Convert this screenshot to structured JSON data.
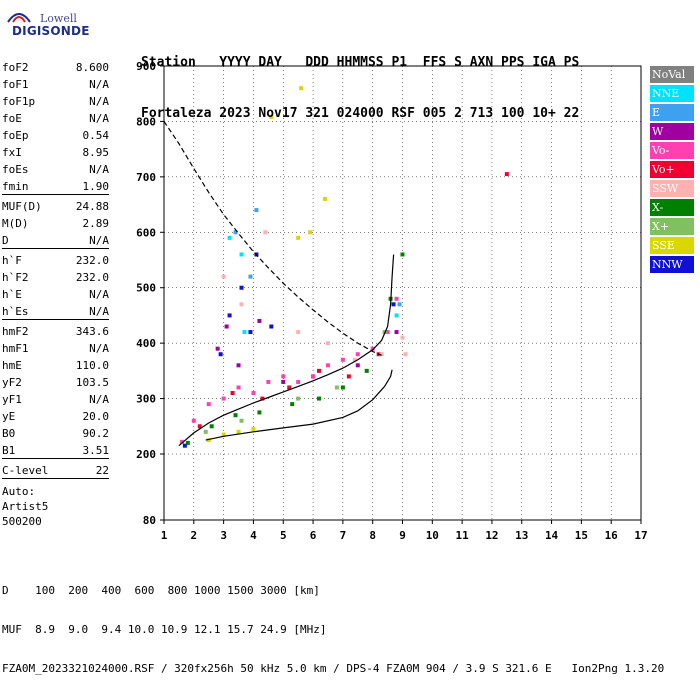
{
  "logo": {
    "line1": "Lowell",
    "line2": "DIGISONDE"
  },
  "header": {
    "row1": "Station   YYYY DAY   DDD HHMMSS P1  FFS S AXN PPS IGA PS",
    "row2": "Fortaleza 2023 Nov17 321 024000 RSF 005 2 713 100 10+ 22"
  },
  "params": [
    {
      "label": "foF2",
      "value": "8.600"
    },
    {
      "label": "foF1",
      "value": "N/A"
    },
    {
      "label": "foF1p",
      "value": "N/A"
    },
    {
      "label": "foE",
      "value": "N/A"
    },
    {
      "label": "foEp",
      "value": "0.54"
    },
    {
      "label": "fxI",
      "value": "8.95"
    },
    {
      "label": "foEs",
      "value": "N/A"
    },
    {
      "label": "fmin",
      "value": "1.90",
      "sep": true
    },
    {
      "label": "MUF(D)",
      "value": "24.88"
    },
    {
      "label": "M(D)",
      "value": "2.89"
    },
    {
      "label": "D",
      "value": "N/A",
      "sep": true
    },
    {
      "label": "h`F",
      "value": "232.0"
    },
    {
      "label": "h`F2",
      "value": "232.0"
    },
    {
      "label": "h`E",
      "value": "N/A"
    },
    {
      "label": "h`Es",
      "value": "N/A",
      "sep": true
    },
    {
      "label": "hmF2",
      "value": "343.6"
    },
    {
      "label": "hmF1",
      "value": "N/A"
    },
    {
      "label": "hmE",
      "value": "110.0"
    },
    {
      "label": "yF2",
      "value": "103.5"
    },
    {
      "label": "yF1",
      "value": "N/A"
    },
    {
      "label": "yE",
      "value": "20.0"
    },
    {
      "label": "B0",
      "value": "90.2"
    },
    {
      "label": "B1",
      "value": "3.51",
      "sep": true
    },
    {
      "label": "C-level",
      "value": "22",
      "sep": true
    }
  ],
  "auto": {
    "line1": "Auto:",
    "line2": "Artist5",
    "line3": "500200"
  },
  "legend": [
    {
      "label": "NoVal",
      "color": "#808080"
    },
    {
      "label": "NNE",
      "color": "#00e0ff"
    },
    {
      "label": "E",
      "color": "#3fa0f0"
    },
    {
      "label": "W",
      "color": "#a000a0"
    },
    {
      "label": "Vo-",
      "color": "#ff40b0"
    },
    {
      "label": "Vo+",
      "color": "#ee0030"
    },
    {
      "label": "SSW",
      "color": "#ffb0b0"
    },
    {
      "label": "X-",
      "color": "#008000"
    },
    {
      "label": "X+",
      "color": "#80c060"
    },
    {
      "label": "SSE",
      "color": "#d8d800"
    },
    {
      "label": "NNW",
      "color": "#1010d0"
    }
  ],
  "footer": {
    "row1": "D    100  200  400  600  800 1000 1500 3000 [km]",
    "row2": "MUF  8.9  9.0  9.4 10.0 10.9 12.1 15.7 24.9 [MHz]",
    "row3": "FZA0M_2023321024000.RSF / 320fx256h 50 kHz 5.0 km / DPS-4 FZA0M 904 / 3.9 S 321.6 E   Ion2Png 1.3.20"
  },
  "chart_data": {
    "type": "scatter",
    "xlim": [
      1,
      17
    ],
    "ylim": [
      80,
      900
    ],
    "x_ticks": [
      1,
      2,
      3,
      4,
      5,
      6,
      7,
      8,
      9,
      10,
      11,
      12,
      13,
      14,
      15,
      16,
      17
    ],
    "y_ticks": [
      80,
      200,
      300,
      400,
      500,
      600,
      700,
      800,
      900
    ],
    "lines": [
      {
        "name": "",
        "style": "solid",
        "color": "#000000",
        "points": [
          [
            1.5,
            215
          ],
          [
            2.0,
            238
          ],
          [
            2.5,
            256
          ],
          [
            3,
            270
          ],
          [
            3.5,
            281
          ],
          [
            4,
            292
          ],
          [
            4.5,
            302
          ],
          [
            5,
            312
          ],
          [
            5.5,
            322
          ],
          [
            6,
            332
          ],
          [
            6.5,
            343
          ],
          [
            7,
            355
          ],
          [
            7.5,
            370
          ],
          [
            8,
            388
          ],
          [
            8.3,
            405
          ],
          [
            8.5,
            430
          ],
          [
            8.6,
            470
          ],
          [
            8.65,
            520
          ],
          [
            8.7,
            560
          ]
        ]
      },
      {
        "name": "",
        "style": "solid",
        "color": "#000000",
        "points": [
          [
            2.4,
            225
          ],
          [
            3,
            232
          ],
          [
            4,
            240
          ],
          [
            5,
            247
          ],
          [
            6,
            254
          ],
          [
            7,
            266
          ],
          [
            7.5,
            278
          ],
          [
            8,
            298
          ],
          [
            8.4,
            322
          ],
          [
            8.6,
            340
          ],
          [
            8.65,
            352
          ]
        ]
      },
      {
        "name": "",
        "style": "dashed",
        "color": "#000000",
        "points": [
          [
            1,
            800
          ],
          [
            1.5,
            760
          ],
          [
            2,
            715
          ],
          [
            2.5,
            672
          ],
          [
            3,
            632
          ],
          [
            3.5,
            598
          ],
          [
            4,
            565
          ],
          [
            4.5,
            536
          ],
          [
            5,
            508
          ],
          [
            5.5,
            483
          ],
          [
            6,
            460
          ],
          [
            6.5,
            438
          ],
          [
            7,
            418
          ],
          [
            7.5,
            400
          ],
          [
            8,
            385
          ],
          [
            8.3,
            378
          ]
        ]
      }
    ],
    "scatter_series": [
      {
        "name": "NNE",
        "color": "#00e0ff",
        "points": [
          [
            3.2,
            590
          ],
          [
            3.6,
            560
          ],
          [
            3.7,
            420
          ],
          [
            8.8,
            450
          ]
        ]
      },
      {
        "name": "E",
        "color": "#3fa0f0",
        "points": [
          [
            3.4,
            600
          ],
          [
            3.9,
            520
          ],
          [
            4.1,
            640
          ],
          [
            8.9,
            470
          ]
        ]
      },
      {
        "name": "W",
        "color": "#a000a0",
        "points": [
          [
            2.8,
            390
          ],
          [
            3.1,
            430
          ],
          [
            3.5,
            360
          ],
          [
            4.2,
            440
          ],
          [
            5,
            330
          ],
          [
            6,
            340
          ],
          [
            7.5,
            360
          ],
          [
            8.8,
            420
          ]
        ]
      },
      {
        "name": "Vo-",
        "color": "#ff40b0",
        "points": [
          [
            1.6,
            222
          ],
          [
            2,
            260
          ],
          [
            2.5,
            290
          ],
          [
            3,
            300
          ],
          [
            3.5,
            320
          ],
          [
            4,
            310
          ],
          [
            4.5,
            330
          ],
          [
            5,
            340
          ],
          [
            5.5,
            330
          ],
          [
            6,
            340
          ],
          [
            6.5,
            360
          ],
          [
            7,
            370
          ],
          [
            7.5,
            380
          ],
          [
            8,
            390
          ],
          [
            8.5,
            420
          ],
          [
            8.8,
            480
          ]
        ]
      },
      {
        "name": "Vo+",
        "color": "#ee0030",
        "points": [
          [
            2.2,
            250
          ],
          [
            3.3,
            310
          ],
          [
            4.3,
            300
          ],
          [
            5.2,
            320
          ],
          [
            6.2,
            350
          ],
          [
            7.2,
            340
          ],
          [
            8.2,
            380
          ],
          [
            12.5,
            705
          ]
        ]
      },
      {
        "name": "SSW",
        "color": "#ffb0b0",
        "points": [
          [
            3.0,
            520
          ],
          [
            3.6,
            470
          ],
          [
            4.4,
            600
          ],
          [
            5.5,
            420
          ],
          [
            6.5,
            400
          ],
          [
            7.4,
            370
          ],
          [
            8.3,
            380
          ],
          [
            9,
            410
          ],
          [
            9.1,
            380
          ]
        ]
      },
      {
        "name": "X-",
        "color": "#008000",
        "points": [
          [
            1.8,
            220
          ],
          [
            2.6,
            250
          ],
          [
            3.4,
            270
          ],
          [
            4.2,
            275
          ],
          [
            5.3,
            290
          ],
          [
            6.2,
            300
          ],
          [
            7,
            320
          ],
          [
            7.8,
            350
          ],
          [
            8.6,
            480
          ],
          [
            9,
            560
          ]
        ]
      },
      {
        "name": "X+",
        "color": "#80c060",
        "points": [
          [
            2.4,
            240
          ],
          [
            3.6,
            260
          ],
          [
            5.5,
            300
          ],
          [
            6.8,
            320
          ],
          [
            8.4,
            420
          ]
        ]
      },
      {
        "name": "SSE",
        "color": "#d8d800",
        "points": [
          [
            2.5,
            225
          ],
          [
            3,
            235
          ],
          [
            3.5,
            240
          ],
          [
            4,
            245
          ],
          [
            4.6,
            808
          ],
          [
            5.5,
            590
          ],
          [
            5.6,
            860
          ],
          [
            5.9,
            600
          ],
          [
            6.4,
            660
          ]
        ]
      },
      {
        "name": "NNW",
        "color": "#1010d0",
        "points": [
          [
            1.7,
            215
          ],
          [
            2.9,
            380
          ],
          [
            3.2,
            450
          ],
          [
            3.6,
            500
          ],
          [
            3.9,
            420
          ],
          [
            4.1,
            560
          ],
          [
            4.6,
            430
          ],
          [
            8.7,
            470
          ]
        ]
      }
    ]
  }
}
